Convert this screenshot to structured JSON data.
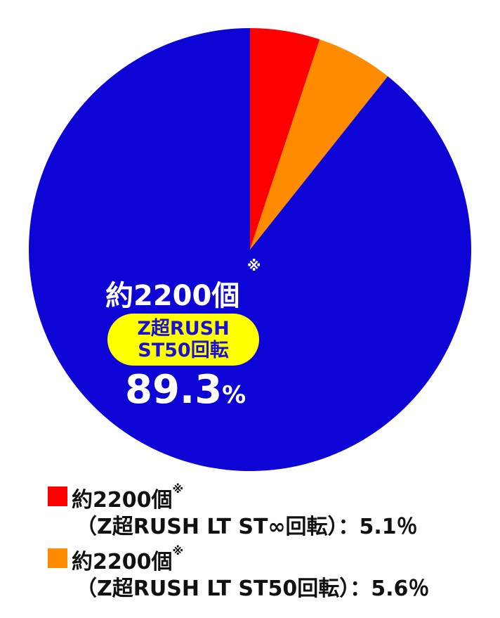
{
  "chart_data": {
    "type": "pie",
    "slices": [
      {
        "label": "約2200個※(Z超RUSH LT ST∞回転)",
        "value": 5.1,
        "color": "#ff0000"
      },
      {
        "label": "約2200個※(Z超RUSH LT ST50回転)",
        "value": 5.6,
        "color": "#ff8c00"
      },
      {
        "label": "約2200個※ Z超RUSH ST50回転",
        "value": 89.3,
        "color": "#0d05d6"
      }
    ],
    "main_label": {
      "amount": "約2200個",
      "note": "※",
      "pill_line1": "Z超RUSH",
      "pill_line2": "ST50回転",
      "percent": "89.3",
      "percent_unit": "%"
    },
    "legend": [
      {
        "line1": "約2200個",
        "note": "※",
        "line2": "（Z超RUSH LT  ST∞回転）：5.1％",
        "color": "#ff0000"
      },
      {
        "line1": "約2200個",
        "note": "※",
        "line2": "（Z超RUSH LT  ST50回転）：5.6％",
        "color": "#ff8c00"
      }
    ]
  }
}
